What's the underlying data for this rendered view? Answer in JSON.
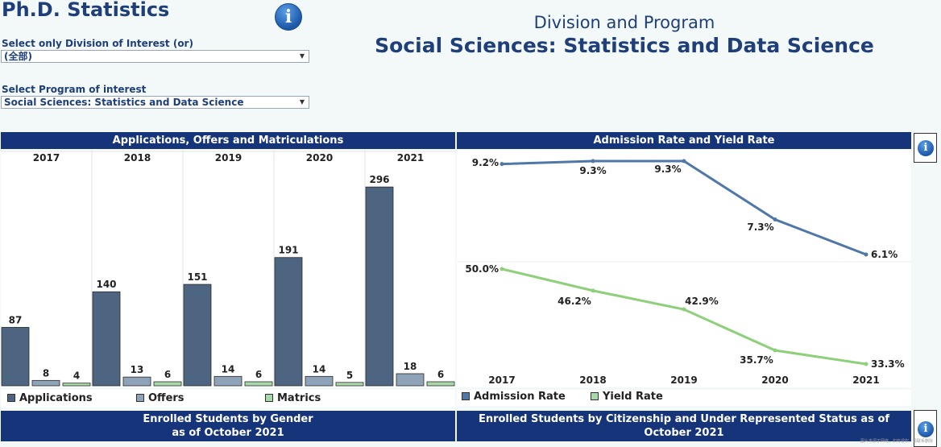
{
  "header": {
    "title": "Ph.D. Statistics",
    "division_select_label": "Select only Division of Interest (or)",
    "division_select_value": "(全部)",
    "program_select_label": "Select Program of interest",
    "program_select_value": "Social Sciences: Statistics and Data Science",
    "division_program_label": "Division and Program",
    "program_name": "Social Sciences: Statistics and Data Science"
  },
  "panels": {
    "applications_title": "Applications, Offers and Matriculations",
    "rates_title": "Admission Rate and Yield Rate",
    "gender_title": "Enrolled Students by Gender\nas of October 2021",
    "gender_title_line1": "Enrolled Students by Gender",
    "gender_title_line2": "as of October 2021",
    "citizenship_title_line1": "Enrolled Students by Citizenship and Under Represented Status as of",
    "citizenship_title_line2": "October 2021"
  },
  "legends": {
    "applications": "Applications",
    "offers": "Offers",
    "matrics": "Matrics",
    "admission_rate": "Admission Rate",
    "yield_rate": "Yield Rate"
  },
  "colors": {
    "applications": "#4d6580",
    "offers": "#8ea2b8",
    "matrics": "#a8d8a8",
    "admission_line": "#4f77a8",
    "yield_line": "#8ed07a",
    "header_bg": "#16347a"
  },
  "icons": {
    "info": "info-icon"
  },
  "watermark": "图片来源于网络，如有侵权，请联系删除",
  "chart_data": [
    {
      "type": "bar",
      "title": "Applications, Offers and Matriculations",
      "categories": [
        "2017",
        "2018",
        "2019",
        "2020",
        "2021"
      ],
      "series": [
        {
          "name": "Applications",
          "values": [
            87,
            140,
            151,
            191,
            296
          ]
        },
        {
          "name": "Offers",
          "values": [
            8,
            13,
            14,
            14,
            18
          ]
        },
        {
          "name": "Matrics",
          "values": [
            4,
            6,
            6,
            5,
            6
          ]
        }
      ],
      "ylim": [
        0,
        320
      ]
    },
    {
      "type": "line",
      "title": "Admission Rate and Yield Rate",
      "x": [
        "2017",
        "2018",
        "2019",
        "2020",
        "2021"
      ],
      "series": [
        {
          "name": "Admission Rate",
          "values": [
            9.2,
            9.3,
            9.3,
            7.3,
            6.1
          ],
          "labels": [
            "9.2%",
            "9.3%",
            "9.3%",
            "7.3%",
            "6.1%"
          ]
        },
        {
          "name": "Yield Rate",
          "values": [
            50.0,
            46.2,
            42.9,
            35.7,
            33.3
          ],
          "labels": [
            "50.0%",
            "46.2%",
            "42.9%",
            "35.7%",
            "33.3%"
          ]
        }
      ]
    }
  ]
}
